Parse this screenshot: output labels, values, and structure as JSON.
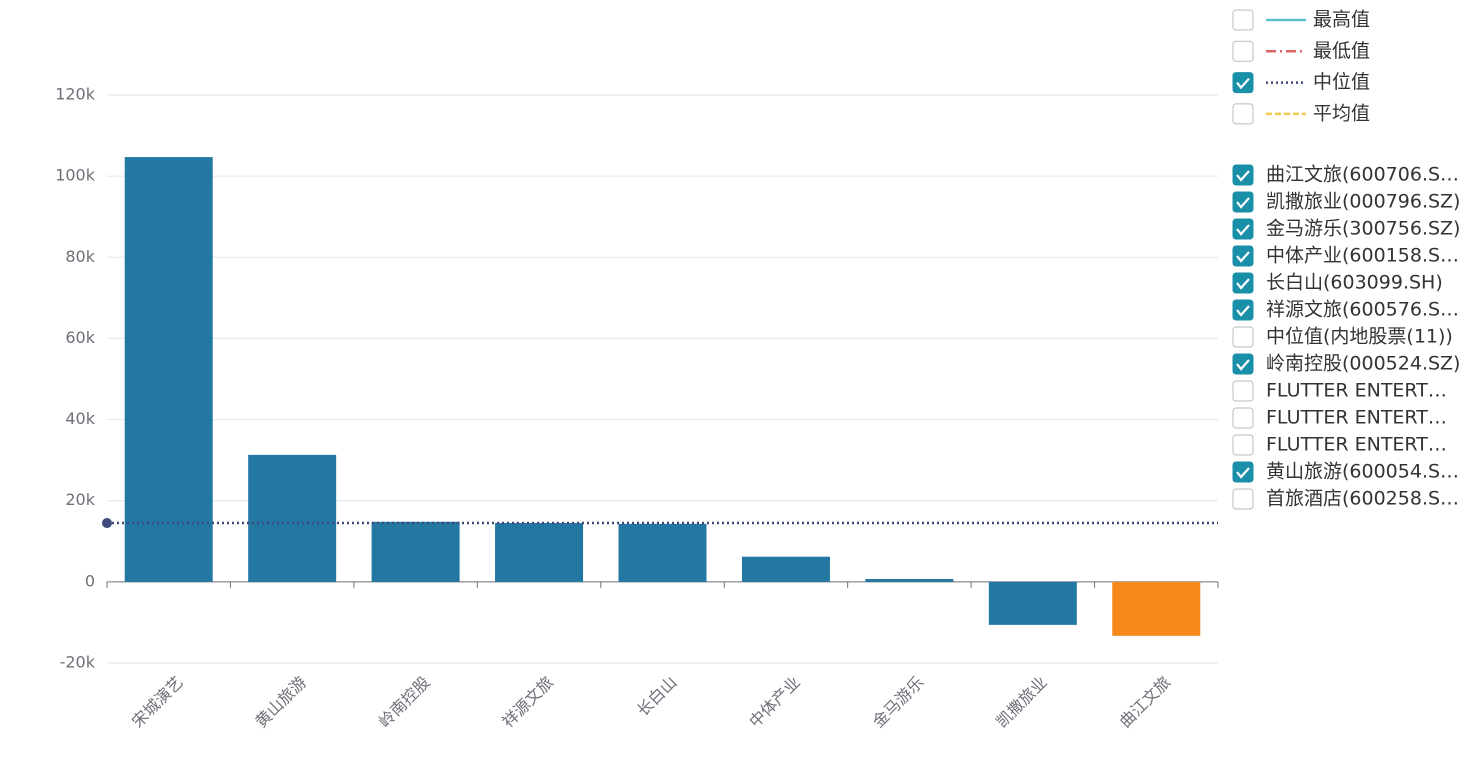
{
  "chart_data": {
    "type": "bar",
    "categories": [
      "宋城演艺",
      "黄山旅游",
      "岭南控股",
      "祥源文旅",
      "长白山",
      "中体产业",
      "金马游乐",
      "凯撒旅业",
      "曲江文旅"
    ],
    "values": [
      104700,
      31300,
      14800,
      14500,
      14300,
      6200,
      700,
      -10600,
      -13300
    ],
    "colors": [
      "#2378a3",
      "#2378a3",
      "#2378a3",
      "#2378a3",
      "#2378a3",
      "#2378a3",
      "#2378a3",
      "#2378a3",
      "#f5891a"
    ],
    "ylim": [
      -20000,
      120000
    ],
    "yticks": [
      {
        "value": -20000,
        "label": "-20k"
      },
      0,
      {
        "value": 20000,
        "label": "20k"
      },
      {
        "value": 40000,
        "label": "40k"
      },
      {
        "value": 60000,
        "label": "60k"
      },
      {
        "value": 80000,
        "label": "80k"
      },
      {
        "value": 100000,
        "label": "100k"
      },
      {
        "value": 120000,
        "label": "120k"
      }
    ],
    "grid": true,
    "median": 14500,
    "median_color": "#3d4a7a",
    "line_legend": [
      {
        "name": "最高值",
        "color": "#5bc0c8",
        "dash": "solid",
        "checked": false
      },
      {
        "name": "最低值",
        "color": "#e06666",
        "dash": "dashdot",
        "checked": false
      },
      {
        "name": "中位值",
        "color": "#3d4a7a",
        "dash": "dotted",
        "checked": true
      },
      {
        "name": "平均值",
        "color": "#f2c94c",
        "dash": "dashed",
        "checked": false
      }
    ],
    "series_legend": [
      {
        "name": "曲江文旅(600706.S…",
        "checked": true
      },
      {
        "name": "凯撒旅业(000796.SZ)",
        "checked": true
      },
      {
        "name": "金马游乐(300756.SZ)",
        "checked": true
      },
      {
        "name": "中体产业(600158.S…",
        "checked": true
      },
      {
        "name": "长白山(603099.SH)",
        "checked": true
      },
      {
        "name": "祥源文旅(600576.S…",
        "checked": true
      },
      {
        "name": "中位值(内地股票(11))",
        "checked": false
      },
      {
        "name": "岭南控股(000524.SZ)",
        "checked": true
      },
      {
        "name": "FLUTTER ENTERT…",
        "checked": false
      },
      {
        "name": "FLUTTER ENTERT…",
        "checked": false
      },
      {
        "name": "FLUTTER ENTERT…",
        "checked": false
      },
      {
        "name": "黄山旅游(600054.S…",
        "checked": true
      },
      {
        "name": "首旅酒店(600258.S…",
        "checked": false
      }
    ]
  }
}
